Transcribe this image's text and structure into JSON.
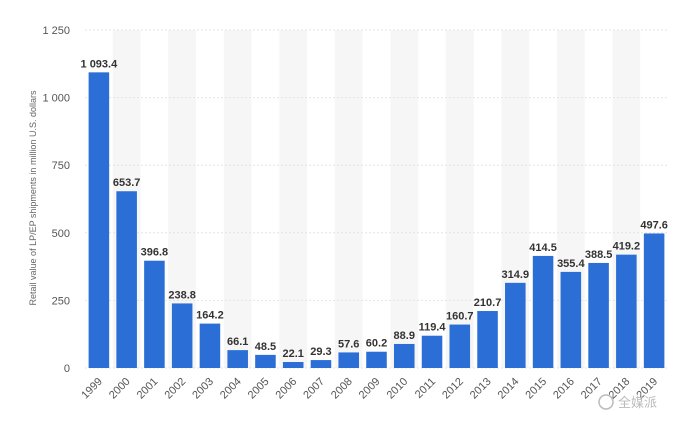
{
  "chart_data": {
    "type": "bar",
    "title": "",
    "xlabel": "",
    "ylabel": "Retail value of LP/EP shipments in million U.S. dollars",
    "ylim": [
      0,
      1250
    ],
    "yticks": [
      0,
      250,
      500,
      750,
      1000,
      1250
    ],
    "ytick_labels": [
      "0",
      "250",
      "500",
      "750",
      "1 000",
      "1 250"
    ],
    "grid": true,
    "bar_color": "#2a6ed6",
    "categories": [
      "1999",
      "2000",
      "2001",
      "2002",
      "2003",
      "2004",
      "2005",
      "2006",
      "2007",
      "2008",
      "2009",
      "2010",
      "2011",
      "2012",
      "2013",
      "2014",
      "2015",
      "2016",
      "2017",
      "2018",
      "2019"
    ],
    "values": [
      1093.4,
      653.7,
      396.8,
      238.8,
      164.2,
      66.1,
      48.5,
      22.1,
      29.3,
      57.6,
      60.2,
      88.9,
      119.4,
      160.7,
      210.7,
      314.9,
      414.5,
      355.4,
      388.5,
      419.2,
      497.6
    ],
    "value_labels": [
      "1 093.4",
      "653.7",
      "396.8",
      "238.8",
      "164.2",
      "66.1",
      "48.5",
      "22.1",
      "29.3",
      "57.6",
      "60.2",
      "88.9",
      "119.4",
      "160.7",
      "210.7",
      "314.9",
      "414.5",
      "355.4",
      "388.5",
      "419.2",
      "497.6"
    ]
  },
  "watermark": {
    "icon": "chat-bubble-icon",
    "text": "全媒派"
  }
}
